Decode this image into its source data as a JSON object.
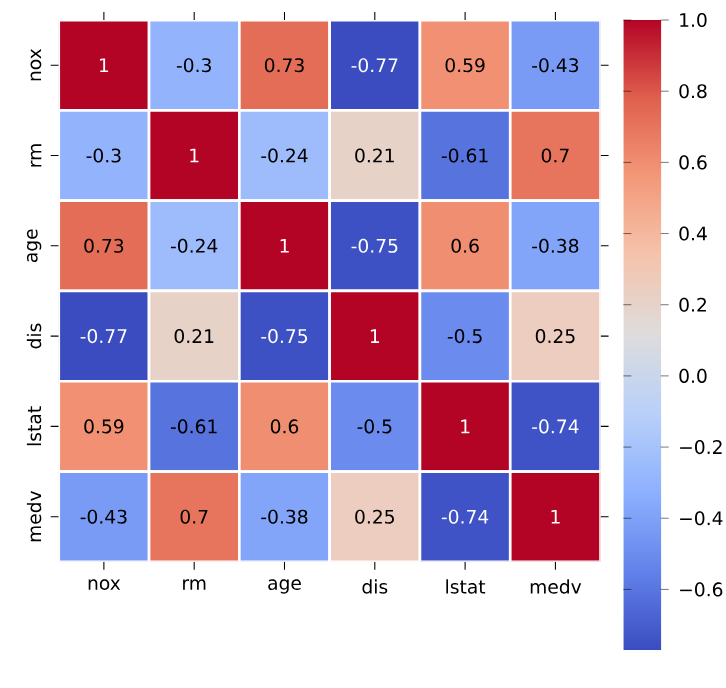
{
  "chart_data": {
    "type": "heatmap",
    "categories": [
      "nox",
      "rm",
      "age",
      "dis",
      "lstat",
      "medv"
    ],
    "y_categories": [
      "nox",
      "rm",
      "age",
      "dis",
      "lstat",
      "medv"
    ],
    "cells": [
      [
        1,
        -0.3,
        0.73,
        -0.77,
        0.59,
        -0.43
      ],
      [
        -0.3,
        1,
        -0.24,
        0.21,
        -0.61,
        0.7
      ],
      [
        0.73,
        -0.24,
        1,
        -0.75,
        0.6,
        -0.38
      ],
      [
        -0.77,
        0.21,
        -0.75,
        1,
        -0.5,
        0.25
      ],
      [
        0.59,
        -0.61,
        0.6,
        -0.5,
        1,
        -0.74
      ],
      [
        -0.43,
        0.7,
        -0.38,
        0.25,
        -0.74,
        1
      ]
    ],
    "clim": [
      -0.77,
      1
    ],
    "cticks": [
      {
        "value": -0.6,
        "label": "−0.6"
      },
      {
        "value": -0.4,
        "label": "−0.4"
      },
      {
        "value": -0.2,
        "label": "−0.2"
      },
      {
        "value": 0.0,
        "label": "0.0"
      },
      {
        "value": 0.2,
        "label": "0.2"
      },
      {
        "value": 0.4,
        "label": "0.4"
      },
      {
        "value": 0.6,
        "label": "0.6"
      },
      {
        "value": 0.8,
        "label": "0.8"
      },
      {
        "value": 1.0,
        "label": "1.0"
      }
    ],
    "data_labels": true
  }
}
